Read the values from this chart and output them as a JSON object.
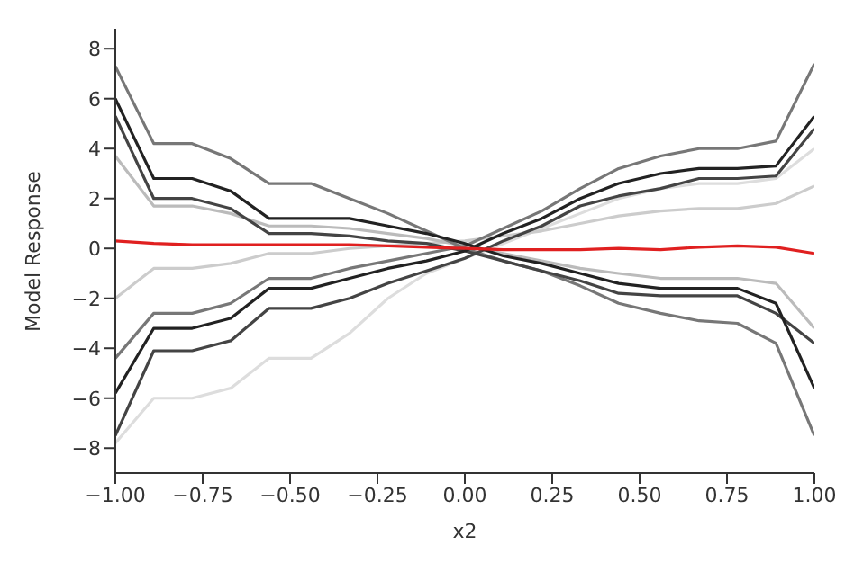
{
  "chart_data": {
    "type": "line",
    "xlabel": "x2",
    "ylabel": "Model Response",
    "grid": false,
    "legend": false,
    "marker": "none",
    "line_style": "solid",
    "x": [
      -1,
      -0.89,
      -0.78,
      -0.67,
      -0.56,
      -0.44,
      -0.33,
      -0.22,
      -0.11,
      0,
      0.11,
      0.22,
      0.33,
      0.44,
      0.56,
      0.67,
      0.78,
      0.89,
      1
    ],
    "xlim": [
      -1,
      1
    ],
    "xticks": [
      {
        "value": -1,
        "label": "−1.00"
      },
      {
        "value": -0.75,
        "label": "−0.75"
      },
      {
        "value": -0.5,
        "label": "−0.50"
      },
      {
        "value": -0.25,
        "label": "−0.25"
      },
      {
        "value": 0,
        "label": "0.00"
      },
      {
        "value": 0.25,
        "label": "0.25"
      },
      {
        "value": 0.5,
        "label": "0.50"
      },
      {
        "value": 0.75,
        "label": "0.75"
      },
      {
        "value": 1,
        "label": "1.00"
      }
    ],
    "ylim": [
      -9,
      8.8
    ],
    "yticks": [
      {
        "value": -8,
        "label": "−8"
      },
      {
        "value": -6,
        "label": "−6"
      },
      {
        "value": -4,
        "label": "−4"
      },
      {
        "value": -2,
        "label": "−2"
      },
      0,
      2,
      4,
      6,
      8
    ],
    "series": [
      {
        "color": "#dddddd",
        "values": [
          -7.8,
          -6.0,
          -6.0,
          -5.6,
          -4.4,
          -4.4,
          -3.4,
          -2.0,
          -1.0,
          -0.4,
          0.2,
          0.8,
          1.4,
          2.0,
          2.4,
          2.6,
          2.6,
          2.8,
          4.0
        ]
      },
      {
        "color": "#cccccc",
        "values": [
          -2.0,
          -0.8,
          -0.8,
          -0.6,
          -0.2,
          -0.2,
          0,
          0.1,
          0.2,
          0.3,
          0.5,
          0.7,
          1.0,
          1.3,
          1.5,
          1.6,
          1.6,
          1.8,
          2.5
        ]
      },
      {
        "color": "#bbbbbb",
        "values": [
          3.7,
          1.7,
          1.7,
          1.4,
          0.9,
          0.9,
          0.8,
          0.6,
          0.4,
          0.1,
          -0.2,
          -0.5,
          -0.8,
          -1.0,
          -1.2,
          -1.2,
          -1.2,
          -1.4,
          -3.2
        ]
      },
      {
        "color": "#777777",
        "values": [
          7.3,
          4.2,
          4.2,
          3.6,
          2.6,
          2.6,
          2.0,
          1.4,
          0.7,
          0.0,
          -0.5,
          -0.9,
          -1.5,
          -2.2,
          -2.6,
          -2.9,
          -3.0,
          -3.8,
          -7.5
        ]
      },
      {
        "color": "#777777",
        "values": [
          -4.4,
          -2.6,
          -2.6,
          -2.2,
          -1.2,
          -1.2,
          -0.8,
          -0.5,
          -0.2,
          0.1,
          0.8,
          1.5,
          2.4,
          3.2,
          3.7,
          4.0,
          4.0,
          4.3,
          7.4
        ]
      },
      {
        "color": "#444444",
        "values": [
          5.3,
          2.0,
          2.0,
          1.6,
          0.6,
          0.6,
          0.5,
          0.3,
          0.2,
          -0.1,
          -0.5,
          -0.9,
          -1.3,
          -1.8,
          -1.9,
          -1.9,
          -1.9,
          -2.6,
          -3.8
        ]
      },
      {
        "color": "#444444",
        "values": [
          -7.5,
          -4.1,
          -4.1,
          -3.7,
          -2.4,
          -2.4,
          -2.0,
          -1.4,
          -0.9,
          -0.4,
          0.3,
          0.9,
          1.7,
          2.1,
          2.4,
          2.8,
          2.8,
          2.9,
          4.8
        ]
      },
      {
        "color": "#222222",
        "values": [
          6.0,
          2.8,
          2.8,
          2.3,
          1.2,
          1.2,
          1.2,
          0.9,
          0.6,
          0.2,
          -0.3,
          -0.6,
          -1.0,
          -1.4,
          -1.6,
          -1.6,
          -1.6,
          -2.2,
          -5.6
        ]
      },
      {
        "color": "#222222",
        "values": [
          -5.8,
          -3.2,
          -3.2,
          -2.8,
          -1.6,
          -1.6,
          -1.2,
          -0.8,
          -0.5,
          -0.1,
          0.6,
          1.2,
          2.0,
          2.6,
          3.0,
          3.2,
          3.2,
          3.3,
          5.3
        ]
      },
      {
        "color": "#e02020",
        "values": [
          0.3,
          0.2,
          0.15,
          0.15,
          0.15,
          0.15,
          0.15,
          0.1,
          0.05,
          0,
          -0.05,
          -0.05,
          -0.05,
          0,
          -0.05,
          0.05,
          0.1,
          0.05,
          -0.2
        ]
      }
    ]
  }
}
